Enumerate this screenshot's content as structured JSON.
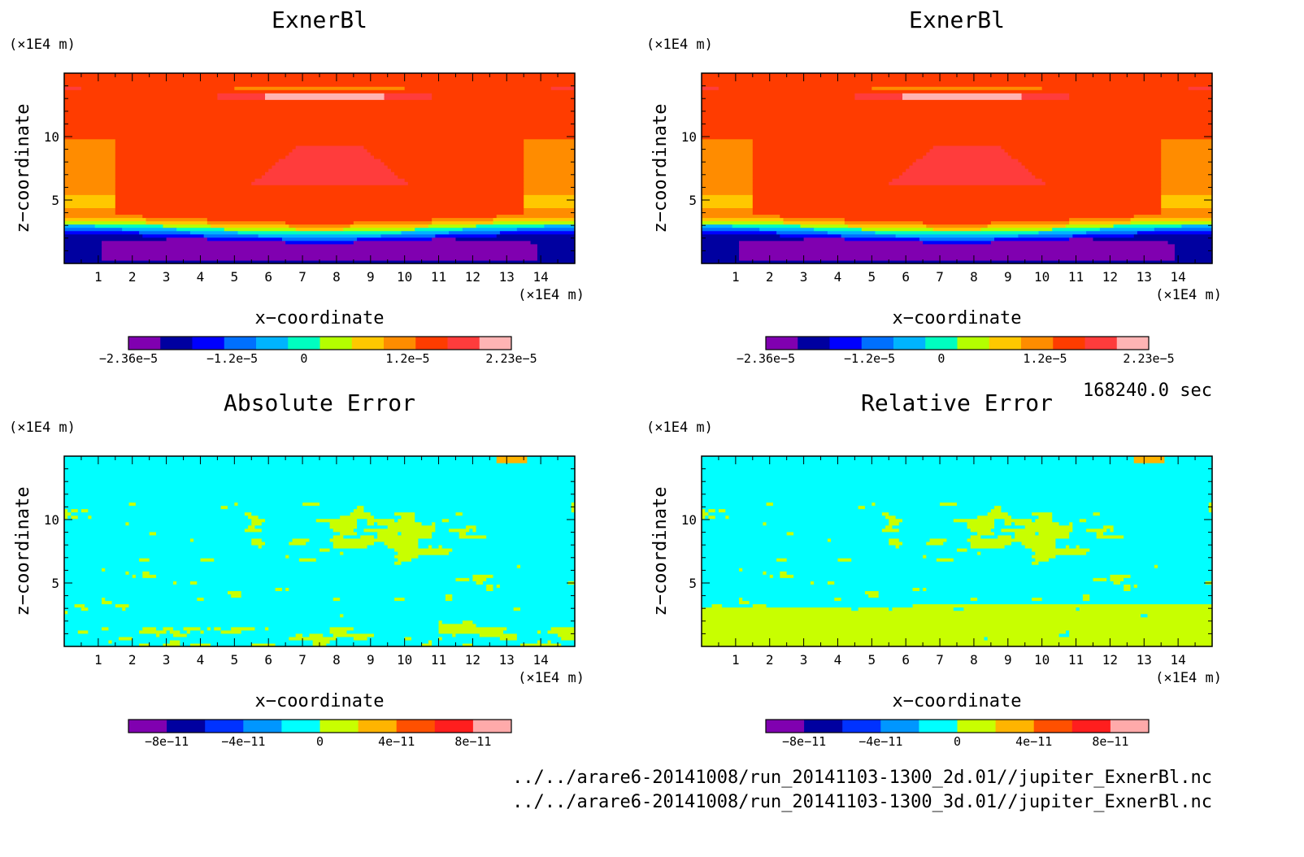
{
  "time_label": "168240.0 sec",
  "file_paths": [
    "../../arare6-20141008/run_20141103-1300_2d.01//jupiter_ExnerBl.nc",
    "../../arare6-20141008/run_20141103-1300_3d.01//jupiter_ExnerBl.nc"
  ],
  "chart_data": [
    {
      "type": "heatmap",
      "title": "ExnerBl",
      "xlabel": "x−coordinate",
      "ylabel": "z−coordinate",
      "x_unit": "(×1E4 m)",
      "y_unit": "(×1E4 m)",
      "xlim": [
        0,
        15
      ],
      "ylim": [
        0,
        15
      ],
      "x_ticks": [
        "1",
        "2",
        "3",
        "4",
        "5",
        "6",
        "7",
        "8",
        "9",
        "10",
        "11",
        "12",
        "13",
        "14"
      ],
      "y_ticks": [
        "5",
        "10"
      ],
      "colorbar": {
        "colors": [
          "#8000b0",
          "#0000a0",
          "#0000ff",
          "#0070ff",
          "#00b4ff",
          "#00ffc0",
          "#b4ff00",
          "#ffc800",
          "#ff8c00",
          "#ff3c00",
          "#ff3c3c",
          "#ffb4b4"
        ],
        "labels": [
          "−2.36e−5",
          "−1.2e−5",
          "0",
          "1.2e−5",
          "2.23e−5"
        ],
        "range": [
          -2.36e-05,
          2.23e-05
        ]
      },
      "field": "exner",
      "grid": false
    },
    {
      "type": "heatmap",
      "title": "ExnerBl",
      "xlabel": "x−coordinate",
      "ylabel": "z−coordinate",
      "x_unit": "(×1E4 m)",
      "y_unit": "(×1E4 m)",
      "xlim": [
        0,
        15
      ],
      "ylim": [
        0,
        15
      ],
      "x_ticks": [
        "1",
        "2",
        "3",
        "4",
        "5",
        "6",
        "7",
        "8",
        "9",
        "10",
        "11",
        "12",
        "13",
        "14"
      ],
      "y_ticks": [
        "5",
        "10"
      ],
      "colorbar": {
        "colors": [
          "#8000b0",
          "#0000a0",
          "#0000ff",
          "#0070ff",
          "#00b4ff",
          "#00ffc0",
          "#b4ff00",
          "#ffc800",
          "#ff8c00",
          "#ff3c00",
          "#ff3c3c",
          "#ffb4b4"
        ],
        "labels": [
          "−2.36e−5",
          "−1.2e−5",
          "0",
          "1.2e−5",
          "2.23e−5"
        ],
        "range": [
          -2.36e-05,
          2.23e-05
        ]
      },
      "field": "exner",
      "grid": false
    },
    {
      "type": "heatmap",
      "title": "Absolute Error",
      "xlabel": "x−coordinate",
      "ylabel": "z−coordinate",
      "x_unit": "(×1E4 m)",
      "y_unit": "(×1E4 m)",
      "xlim": [
        0,
        15
      ],
      "ylim": [
        0,
        15
      ],
      "x_ticks": [
        "1",
        "2",
        "3",
        "4",
        "5",
        "6",
        "7",
        "8",
        "9",
        "10",
        "11",
        "12",
        "13",
        "14"
      ],
      "y_ticks": [
        "5",
        "10"
      ],
      "colorbar": {
        "colors": [
          "#8000b0",
          "#0000a0",
          "#0032ff",
          "#0096ff",
          "#00ffff",
          "#c8ff00",
          "#ffb400",
          "#ff5000",
          "#ff1e1e",
          "#ffaaaa"
        ],
        "labels": [
          "−8e−11",
          "−4e−11",
          "0",
          "4e−11",
          "8e−11"
        ],
        "range": [
          -1e-10,
          1e-10
        ]
      },
      "field": "abs_error",
      "grid": false
    },
    {
      "type": "heatmap",
      "title": "Relative Error",
      "xlabel": "x−coordinate",
      "ylabel": "z−coordinate",
      "x_unit": "(×1E4 m)",
      "y_unit": "(×1E4 m)",
      "xlim": [
        0,
        15
      ],
      "ylim": [
        0,
        15
      ],
      "x_ticks": [
        "1",
        "2",
        "3",
        "4",
        "5",
        "6",
        "7",
        "8",
        "9",
        "10",
        "11",
        "12",
        "13",
        "14"
      ],
      "y_ticks": [
        "5",
        "10"
      ],
      "colorbar": {
        "colors": [
          "#8000b0",
          "#0000a0",
          "#0032ff",
          "#0096ff",
          "#00ffff",
          "#c8ff00",
          "#ffb400",
          "#ff5000",
          "#ff1e1e",
          "#ffaaaa"
        ],
        "labels": [
          "−8e−11",
          "−4e−11",
          "0",
          "4e−11",
          "8e−11"
        ],
        "range": [
          -1e-10,
          1e-10
        ]
      },
      "field": "rel_error",
      "grid": false
    }
  ]
}
